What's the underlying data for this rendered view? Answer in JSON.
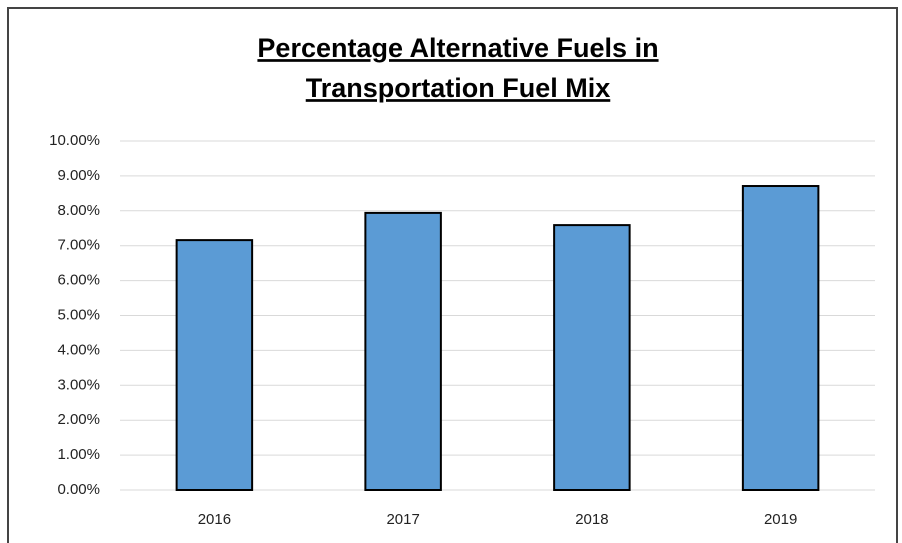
{
  "chart_data": {
    "type": "bar",
    "title": [
      "Percentage Alternative Fuels in",
      "Transportation Fuel Mix"
    ],
    "categories": [
      "2016",
      "2017",
      "2018",
      "2019"
    ],
    "values": [
      7.16,
      7.94,
      7.59,
      8.71
    ],
    "color": "#5b9bd5",
    "ylim": [
      0,
      10
    ],
    "yticks": [
      {
        "value": 0,
        "label": "0.00%"
      },
      {
        "value": 1,
        "label": "1.00%"
      },
      {
        "value": 2,
        "label": "2.00%"
      },
      {
        "value": 3,
        "label": "3.00%"
      },
      {
        "value": 4,
        "label": "4.00%"
      },
      {
        "value": 5,
        "label": "5.00%"
      },
      {
        "value": 6,
        "label": "6.00%"
      },
      {
        "value": 7,
        "label": "7.00%"
      },
      {
        "value": 8,
        "label": "8.00%"
      },
      {
        "value": 9,
        "label": "9.00%"
      },
      {
        "value": 10,
        "label": "10.00%"
      }
    ],
    "grid": true
  }
}
